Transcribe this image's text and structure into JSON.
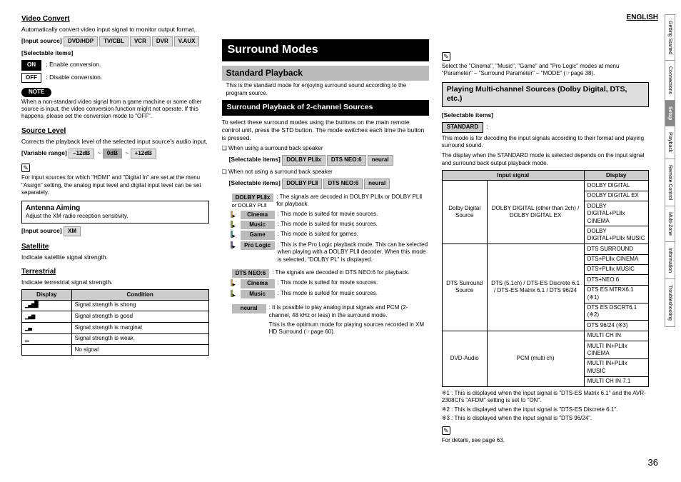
{
  "lang": "ENGLISH",
  "page_num": "36",
  "side_tabs": [
    "Getting Started",
    "Connections",
    "Setup",
    "Playback",
    "Remote Control",
    "Multi-Zone",
    "Information",
    "Troubleshooting"
  ],
  "active_tab_index": 2,
  "col1": {
    "video_convert": {
      "title": "Video Convert",
      "desc": "Automatically convert video input signal to monitor output format.",
      "input_src_label": "[Input source]",
      "inputs": [
        "DVD/HDP",
        "TV/CBL",
        "VCR",
        "DVR",
        "V.AUX"
      ],
      "selectable_label": "[Selectable items]",
      "on": "ON",
      "on_desc": ": Enable conversion.",
      "off": "OFF",
      "off_desc": ": Disable conversion.",
      "note": "NOTE",
      "note_text": "When a non-standard video signal from a game machine or some other source is input, the video conversion function might not operate. If this happens, please set the conversion mode to \"OFF\"."
    },
    "source_level": {
      "title": "Source Level",
      "desc": "Corrects the playback level of the selected input source's audio input.",
      "var_label": "[Variable range]",
      "min": "–12dB",
      "def": "0dB",
      "max": "+12dB",
      "note_text": "For input sources for which \"HDMI\" and \"Digital In\" are set at the menu \"Assign\" setting, the analog input level and digital input level can be set separately."
    },
    "antenna": {
      "title": "Antenna Aiming",
      "desc": "Adjust the XM radio reception sensitivity.",
      "input_src_label": "[Input source]",
      "src": "XM"
    },
    "satellite": {
      "title": "Satellite",
      "desc": "Indicate satellite signal strength."
    },
    "terrestrial": {
      "title": "Terrestrial",
      "desc": "Indicate terrestrial signal strength.",
      "cols": [
        "Display",
        "Condition"
      ],
      "rows": [
        [
          "▁▃▅█",
          "Signal strength is strong"
        ],
        [
          "▁▃▅",
          "Signal strength is good"
        ],
        [
          "▁▃",
          "Signal strength is marginal"
        ],
        [
          "▁",
          "Signal strength is weak"
        ],
        [
          "",
          "No signal"
        ]
      ]
    }
  },
  "col2": {
    "banner": "Surround Modes",
    "standard": {
      "title": "Standard Playback",
      "desc": "This is the standard mode for enjoying surround sound according to the program source."
    },
    "twoch": {
      "title": "Surround Playback of 2-channel Sources",
      "desc": "To select these surround modes using the buttons on the main remote control unit, press the STD button. The mode switches each time the button is pressed.",
      "line1": "❏ When using a surround back speaker",
      "sel_label": "[Selectable items]",
      "opts1": [
        "DOLBY PLⅡx",
        "DTS NEO:6",
        "neural"
      ],
      "line2": "❏ When not using a surround back speaker",
      "opts2": [
        "DOLBY PLⅡ",
        "DTS NEO:6",
        "neural"
      ],
      "dolby_head": "DOLBY PLⅡx",
      "dolby_head2": "or DOLBY PLⅡ",
      "dolby_desc": ": The signals are decoded in DOLBY PLⅡx or DOLBY PLⅡ for playback.",
      "rows1": [
        [
          "movie",
          "Cinema",
          ": This mode is suited for movie sources."
        ],
        [
          "music",
          "Music",
          ": This mode is suited for music sources."
        ],
        [
          "game",
          "Game",
          ": This mode is suited for games."
        ],
        [
          "pro",
          "Pro Logic",
          ": This is the Pro Logic playback mode. This can be selected when playing with a DOLBY PLⅡ decoder. When this mode is selected, \"DOLBY PL\" is displayed."
        ]
      ],
      "dts_head": "DTS NEO:6",
      "dts_desc": ": The signals are decoded in DTS NEO:6 for playback.",
      "rows2": [
        [
          "movie",
          "Cinema",
          ": This mode is suited for movie sources."
        ],
        [
          "music",
          "Music",
          ": This mode is suited for music sources."
        ]
      ],
      "neural_head": "neural",
      "neural_desc": ": It is possible to play analog input signals and PCM (2-channel, 48 kHz or less) in the surround mode.",
      "neural_desc2": "This is the optimum mode for playing sources recorded in XM HD Surround (☞page 60)."
    }
  },
  "col3": {
    "top_text": "Select the \"Cinema\", \"Music\", \"Game\" and \"Pro Logic\" modes at menu \"Parameter\" – \"Surround Parameter\" – \"MODE\" (☞page 38).",
    "multi": {
      "title": "Playing Multi-channel Sources (Dolby Digital, DTS, etc.)",
      "sel_label": "[Selectable items]",
      "standard": "STANDARD",
      "desc1": "This mode is for decoding the input signals according to their format and playing surround sound.",
      "desc2": "The display when the STANDARD mode is selected depends on the input signal and surround back output playback mode.",
      "th1": "Input signal",
      "th2": "Display",
      "rows": [
        {
          "src": "Dolby Digital Source",
          "sig": "DOLBY DIGITAL (other than 2ch) / DOLBY DIGITAL EX",
          "disp": [
            "DOLBY DIGITAL",
            "DOLBY DIGITAL EX",
            "DOLBY DIGITAL+PLⅡx CINEMA",
            "DOLBY DIGITAL+PLⅡx MUSIC"
          ]
        },
        {
          "src": "DTS Surround Source",
          "sig": "DTS (5.1ch) / DTS-ES Discrete 6.1 / DTS-ES Matrix 6.1 / DTS 96/24",
          "disp": [
            "DTS SURROUND",
            "DTS+PLⅡx CINEMA",
            "DTS+PLⅡx MUSIC",
            "DTS+NEO:6",
            "DTS ES MTRX6.1 (※1)",
            "DTS ES DSCRT6.1 (※2)",
            "DTS 96/24 (※3)"
          ]
        },
        {
          "src": "DVD-Audio",
          "sig": "PCM (multi ch)",
          "disp": [
            "MULTI CH IN",
            "MULTI IN+PLⅡx CINEMA",
            "MULTI IN+PLⅡx MUSIC",
            "MULTI CH IN 7.1"
          ]
        }
      ],
      "notes": [
        "※1 : This is displayed when the input signal is \"DTS-ES Matrix 6.1\" and the AVR-2308CI's \"AFDM\" setting is set to \"ON\".",
        "※2 : This is displayed when the input signal is \"DTS-ES Discrete 6.1\".",
        "※3 : This is displayed when the input signal is \"DTS 96/24\"."
      ],
      "details": "For details, see page 63."
    }
  }
}
